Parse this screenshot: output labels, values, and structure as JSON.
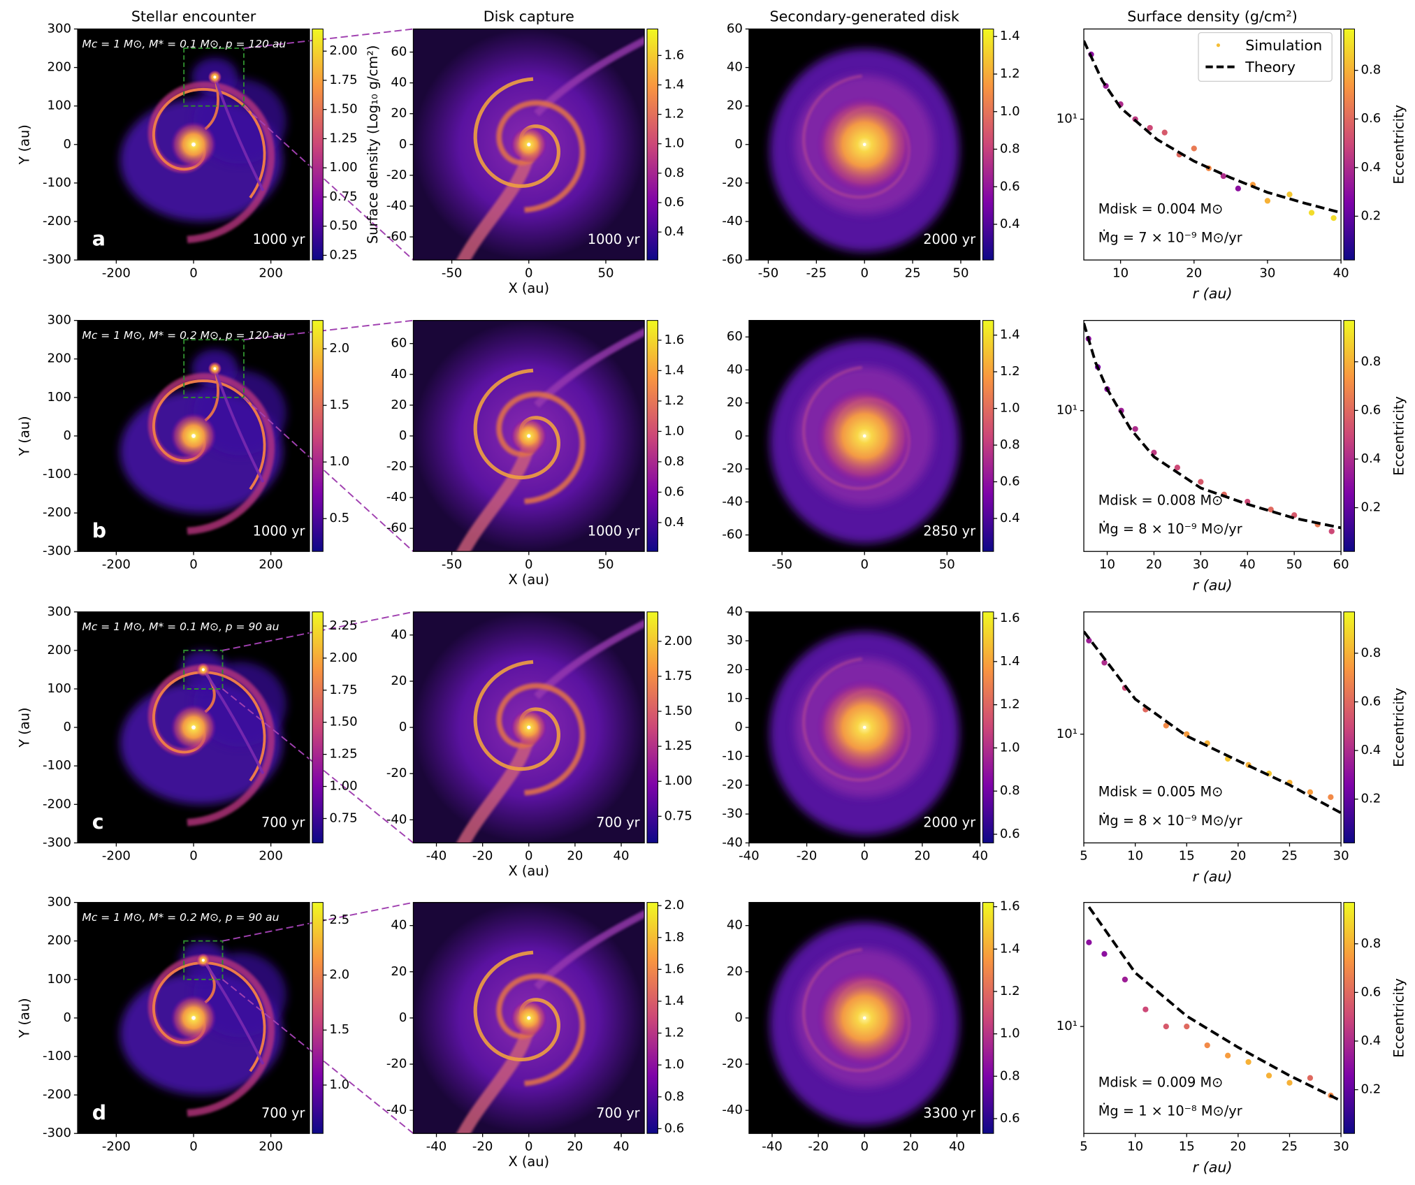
{
  "chart_data": [
    {
      "type": "image",
      "title": "Stellar encounter",
      "ylabel": "Y (au)",
      "xlim": [
        -300,
        300
      ],
      "ylim": [
        -300,
        300
      ],
      "xticks": [
        -200,
        0,
        200
      ],
      "yticks": [
        -300,
        -200,
        -100,
        0,
        100,
        200,
        300
      ],
      "colorbar": {
        "lim": [
          0.21,
          2.19
        ],
        "ticks": [
          0.25,
          {
            "value": 0.5,
            "label": "0.50"
          },
          0.75,
          {
            "value": 1,
            "label": "1.00"
          },
          1.25,
          {
            "value": 1.5,
            "label": "1.50"
          },
          1.75,
          {
            "value": 2,
            "label": "2.00"
          }
        ],
        "label": "Surface density (Log₁₀ g/cm²)"
      },
      "annotations": {
        "params": "Mc = 1 M⊙,  M* = 0.1 M⊙,  p = 120 au",
        "panel_label": "a",
        "time": "1000 yr"
      }
    },
    {
      "type": "image",
      "title": "Disk capture",
      "xlabel": "X (au)",
      "xlim": [
        -75,
        75
      ],
      "ylim": [
        -75,
        75
      ],
      "xticks": [
        -50,
        0,
        50
      ],
      "yticks": [
        -60,
        -40,
        -20,
        0,
        20,
        40,
        60
      ],
      "colorbar": {
        "lim": [
          0.21,
          1.78
        ],
        "ticks": [
          0.4,
          0.6,
          0.8,
          {
            "value": 1,
            "label": "1.0"
          },
          1.2,
          1.4,
          1.6
        ]
      },
      "annotations": {
        "time": "1000 yr"
      }
    },
    {
      "type": "image",
      "title": "Secondary-generated disk",
      "xlim": [
        -60,
        60
      ],
      "ylim": [
        -60,
        60
      ],
      "xticks": [
        -50,
        -25,
        0,
        25,
        50
      ],
      "yticks": [
        -60,
        -40,
        -20,
        0,
        20,
        40,
        60
      ],
      "colorbar": {
        "lim": [
          0.21,
          1.44
        ],
        "ticks": [
          0.4,
          0.6,
          0.8,
          {
            "value": 1,
            "label": "1.0"
          },
          1.2,
          1.4
        ]
      },
      "annotations": {
        "time": "2000 yr"
      }
    },
    {
      "type": "scatter",
      "title": "Surface density (g/cm²)",
      "xlabel": "r (au)",
      "log_y": true,
      "xlim": [
        5,
        40
      ],
      "ylim": [
        1.8,
        30
      ],
      "xticks": [
        10,
        20,
        30,
        40
      ],
      "yticks": [
        {
          "value": 10,
          "label": "10¹"
        }
      ],
      "colorbar": {
        "lim": [
          0.02,
          0.97
        ],
        "ticks": [
          0.2,
          0.4,
          0.6,
          0.8
        ],
        "label": "Eccentricity"
      },
      "colormap": "plasma",
      "legend": "upper right",
      "series": [
        {
          "name": "Simulation",
          "x": [
            6,
            8,
            10,
            12,
            14,
            16,
            18,
            20,
            22,
            24,
            26,
            28,
            30,
            33,
            36,
            39
          ],
          "values": [
            22,
            15,
            12,
            10,
            9,
            8.5,
            6.5,
            7,
            5.5,
            5,
            4.3,
            4.5,
            3.7,
            4,
            3.2,
            3
          ],
          "eccentricity": [
            0.3,
            0.35,
            0.4,
            0.45,
            0.5,
            0.55,
            0.6,
            0.65,
            0.7,
            0.4,
            0.3,
            0.75,
            0.8,
            0.85,
            0.9,
            0.9
          ]
        },
        {
          "name": "Theory",
          "color": "#000000",
          "x": [
            5,
            7.5,
            10,
            15,
            20,
            25,
            30,
            35,
            40
          ],
          "values": [
            26,
            16,
            11.5,
            7.8,
            6,
            4.9,
            4.1,
            3.6,
            3.2
          ]
        }
      ],
      "annotations": {
        "disk_mass": "Mdisk = 0.004 M⊙",
        "accretion_rate": "Ṁg = 7 × 10⁻⁹ M⊙/yr"
      }
    },
    {
      "type": "image",
      "ylabel": "Y (au)",
      "xlim": [
        -300,
        300
      ],
      "ylim": [
        -300,
        300
      ],
      "xticks": [
        -200,
        0,
        200
      ],
      "yticks": [
        -300,
        -200,
        -100,
        0,
        100,
        200,
        300
      ],
      "colorbar": {
        "lim": [
          0.21,
          2.25
        ],
        "ticks": [
          0.5,
          {
            "value": 1,
            "label": "1.0"
          },
          1.5,
          {
            "value": 2,
            "label": "2.0"
          }
        ]
      },
      "annotations": {
        "params": "Mc = 1 M⊙,  M* = 0.2 M⊙,  p = 120 au",
        "panel_label": "b",
        "time": "1000 yr"
      }
    },
    {
      "type": "image",
      "xlabel": "X (au)",
      "xlim": [
        -75,
        75
      ],
      "ylim": [
        -75,
        75
      ],
      "xticks": [
        -50,
        0,
        50
      ],
      "yticks": [
        -60,
        -40,
        -20,
        0,
        20,
        40,
        60
      ],
      "colorbar": {
        "lim": [
          0.21,
          1.73
        ],
        "ticks": [
          0.4,
          0.6,
          0.8,
          {
            "value": 1,
            "label": "1.0"
          },
          1.2,
          1.4,
          1.6
        ]
      },
      "annotations": {
        "time": "1000 yr"
      }
    },
    {
      "type": "image",
      "xlim": [
        -70,
        70
      ],
      "ylim": [
        -70,
        70
      ],
      "xticks": [
        -50,
        0,
        50
      ],
      "yticks": [
        -60,
        -40,
        -20,
        0,
        20,
        40,
        60
      ],
      "colorbar": {
        "lim": [
          0.22,
          1.48
        ],
        "ticks": [
          0.4,
          0.6,
          0.8,
          {
            "value": 1,
            "label": "1.0"
          },
          1.2,
          1.4
        ]
      },
      "annotations": {
        "time": "2850 yr"
      }
    },
    {
      "type": "scatter",
      "xlabel": "r (au)",
      "log_y": true,
      "xlim": [
        5,
        60
      ],
      "ylim": [
        1.8,
        30
      ],
      "xticks": [
        10,
        20,
        30,
        40,
        50,
        60
      ],
      "yticks": [
        {
          "value": 10,
          "label": "10¹"
        }
      ],
      "colorbar": {
        "lim": [
          0.02,
          0.97
        ],
        "ticks": [
          0.2,
          0.4,
          0.6,
          0.8
        ],
        "label": "Eccentricity"
      },
      "colormap": "plasma",
      "series": [
        {
          "x": [
            6,
            8,
            10,
            13,
            16,
            20,
            25,
            30,
            35,
            40,
            45,
            50,
            55,
            58
          ],
          "values": [
            24,
            17,
            13,
            10,
            8,
            6,
            5,
            4.2,
            3.6,
            3.3,
            3,
            2.8,
            2.5,
            2.3
          ],
          "eccentricity": [
            0.3,
            0.25,
            0.3,
            0.35,
            0.4,
            0.45,
            0.5,
            0.55,
            0.6,
            0.5,
            0.6,
            0.55,
            0.65,
            0.5
          ]
        },
        {
          "color": "#000000",
          "x": [
            5,
            7.5,
            10,
            15,
            20,
            30,
            40,
            50,
            60
          ],
          "values": [
            29,
            18,
            13,
            8,
            5.7,
            3.9,
            3.2,
            2.7,
            2.4
          ]
        }
      ],
      "annotations": {
        "disk_mass": "Mdisk = 0.008 M⊙",
        "accretion_rate": "Ṁg = 8 × 10⁻⁹ M⊙/yr"
      }
    },
    {
      "type": "image",
      "ylabel": "Y (au)",
      "xlim": [
        -300,
        300
      ],
      "ylim": [
        -300,
        300
      ],
      "xticks": [
        -200,
        0,
        200
      ],
      "yticks": [
        -300,
        -200,
        -100,
        0,
        100,
        200,
        300
      ],
      "colorbar": {
        "lim": [
          0.56,
          2.36
        ],
        "ticks": [
          0.75,
          {
            "value": 1,
            "label": "1.00"
          },
          1.25,
          {
            "value": 1.5,
            "label": "1.50"
          },
          1.75,
          {
            "value": 2,
            "label": "2.00"
          },
          2.25
        ]
      },
      "annotations": {
        "params": "Mc = 1 M⊙,  M* = 0.1 M⊙,  p = 90 au",
        "panel_label": "c",
        "time": "700 yr"
      }
    },
    {
      "type": "image",
      "xlabel": "X (au)",
      "xlim": [
        -50,
        50
      ],
      "ylim": [
        -50,
        50
      ],
      "xticks": [
        -40,
        -20,
        0,
        20,
        40
      ],
      "yticks": [
        -40,
        -20,
        0,
        20,
        40
      ],
      "colorbar": {
        "lim": [
          0.56,
          2.21
        ],
        "ticks": [
          0.75,
          {
            "value": 1,
            "label": "1.00"
          },
          1.25,
          {
            "value": 1.5,
            "label": "1.50"
          },
          1.75,
          {
            "value": 2,
            "label": "2.00"
          }
        ]
      },
      "annotations": {
        "time": "700 yr"
      }
    },
    {
      "type": "image",
      "xlim": [
        -40,
        40
      ],
      "ylim": [
        -40,
        40
      ],
      "xticks": [
        -40,
        -20,
        0,
        20,
        40
      ],
      "yticks": [
        -40,
        -30,
        -20,
        -10,
        0,
        10,
        20,
        30,
        40
      ],
      "colorbar": {
        "lim": [
          0.56,
          1.63
        ],
        "ticks": [
          0.6,
          0.8,
          {
            "value": 1,
            "label": "1.0"
          },
          1.2,
          1.4,
          1.6
        ]
      },
      "annotations": {
        "time": "2000 yr"
      }
    },
    {
      "type": "scatter",
      "xlabel": "r (au)",
      "log_y": true,
      "xlim": [
        5,
        30
      ],
      "ylim": [
        5.4,
        20
      ],
      "xticks": [
        5,
        10,
        15,
        20,
        25,
        30
      ],
      "yticks": [
        {
          "value": 10,
          "label": "10¹"
        }
      ],
      "colorbar": {
        "lim": [
          0.02,
          0.97
        ],
        "ticks": [
          0.2,
          0.4,
          0.6,
          0.8
        ],
        "label": "Eccentricity"
      },
      "colormap": "plasma",
      "series": [
        {
          "x": [
            5.5,
            7,
            9,
            11,
            13,
            15,
            17,
            19,
            21,
            23,
            25,
            27,
            29
          ],
          "values": [
            17,
            15,
            13,
            11.5,
            10.5,
            10,
            9.5,
            8.7,
            8.4,
            8,
            7.6,
            7.2,
            7
          ],
          "eccentricity": [
            0.35,
            0.4,
            0.5,
            0.6,
            0.7,
            0.75,
            0.8,
            0.85,
            0.8,
            0.85,
            0.8,
            0.75,
            0.7
          ]
        },
        {
          "color": "#000000",
          "x": [
            5,
            10,
            15,
            20,
            25,
            30
          ],
          "values": [
            17.9,
            12.2,
            9.9,
            8.6,
            7.5,
            6.4
          ]
        }
      ],
      "annotations": {
        "disk_mass": "Mdisk = 0.005 M⊙",
        "accretion_rate": "Ṁg = 8 × 10⁻⁹ M⊙/yr"
      }
    },
    {
      "type": "image",
      "ylabel": "Y (au)",
      "xlim": [
        -300,
        300
      ],
      "ylim": [
        -300,
        300
      ],
      "xticks": [
        -200,
        0,
        200
      ],
      "yticks": [
        -300,
        -200,
        -100,
        0,
        100,
        200,
        300
      ],
      "colorbar": {
        "lim": [
          0.56,
          2.66
        ],
        "ticks": [
          {
            "value": 1,
            "label": "1.0"
          },
          1.5,
          {
            "value": 2,
            "label": "2.0"
          },
          2.5
        ]
      },
      "annotations": {
        "params": "Mc = 1 M⊙,  M* = 0.2 M⊙,  p = 90 au",
        "panel_label": "d",
        "time": "700 yr"
      }
    },
    {
      "type": "image",
      "xlabel": "X (au)",
      "xlim": [
        -50,
        50
      ],
      "ylim": [
        -50,
        50
      ],
      "xticks": [
        -40,
        -20,
        0,
        20,
        40
      ],
      "yticks": [
        -40,
        -20,
        0,
        20,
        40
      ],
      "colorbar": {
        "lim": [
          0.57,
          2.02
        ],
        "ticks": [
          0.6,
          0.8,
          {
            "value": 1,
            "label": "1.0"
          },
          1.2,
          1.4,
          1.6,
          1.8,
          {
            "value": 2,
            "label": "2.0"
          }
        ]
      },
      "annotations": {
        "time": "700 yr"
      }
    },
    {
      "type": "image",
      "xlim": [
        -50,
        50
      ],
      "ylim": [
        -50,
        50
      ],
      "xticks": [
        -40,
        -20,
        0,
        20,
        40
      ],
      "yticks": [
        -40,
        -20,
        0,
        20,
        40
      ],
      "colorbar": {
        "lim": [
          0.53,
          1.62
        ],
        "ticks": [
          0.6,
          0.8,
          {
            "value": 1,
            "label": "1.0"
          },
          1.2,
          1.4,
          1.6
        ]
      },
      "annotations": {
        "time": "3300 yr"
      }
    },
    {
      "type": "scatter",
      "xlabel": "r (au)",
      "log_y": true,
      "xlim": [
        5,
        30
      ],
      "ylim": [
        5.5,
        20
      ],
      "xticks": [
        5,
        10,
        15,
        20,
        25,
        30
      ],
      "yticks": [
        {
          "value": 10,
          "label": "10¹"
        }
      ],
      "colorbar": {
        "lim": [
          0.02,
          0.97
        ],
        "ticks": [
          0.2,
          0.4,
          0.6,
          0.8
        ],
        "label": "Eccentricity"
      },
      "colormap": "plasma",
      "series": [
        {
          "x": [
            5.5,
            7,
            9,
            11,
            13,
            15,
            17,
            19,
            21,
            23,
            25,
            27,
            29
          ],
          "values": [
            16,
            15,
            13,
            11,
            10,
            10,
            9,
            8.5,
            8.2,
            7.6,
            7.3,
            7.5,
            6.8
          ],
          "eccentricity": [
            0.3,
            0.3,
            0.35,
            0.5,
            0.55,
            0.6,
            0.7,
            0.75,
            0.8,
            0.8,
            0.8,
            0.6,
            0.7
          ]
        },
        {
          "color": "#000000",
          "x": [
            5.5,
            10,
            15,
            20,
            25,
            30
          ],
          "values": [
            19.5,
            13.5,
            10.6,
            8.9,
            7.6,
            6.6
          ]
        }
      ],
      "annotations": {
        "disk_mass": "Mdisk = 0.009 M⊙",
        "accretion_rate": "Ṁg = 1 × 10⁻⁸ M⊙/yr"
      }
    }
  ]
}
